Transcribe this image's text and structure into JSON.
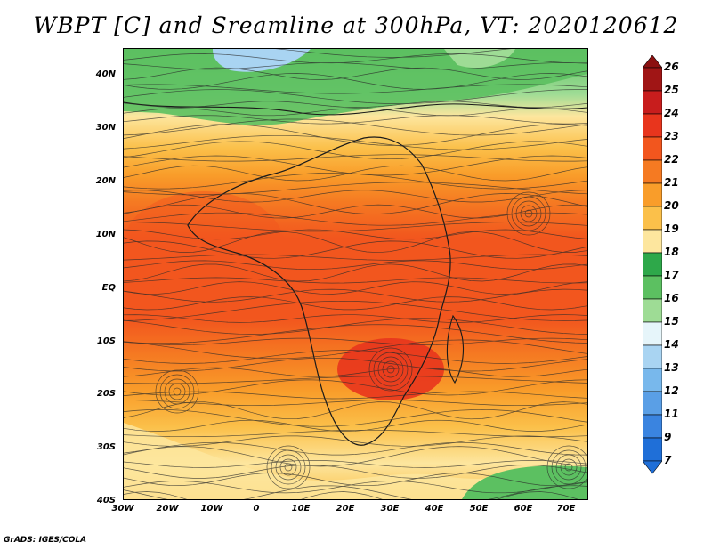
{
  "title": "WBPT [C] and Sreamline at 300hPa, VT: 2020120612",
  "footer": "GrADS: IGES/COLA",
  "axes": {
    "y_labels": [
      "40N",
      "30N",
      "20N",
      "10N",
      "EQ",
      "10S",
      "20S",
      "30S",
      "40S"
    ],
    "x_labels": [
      "30W",
      "20W",
      "10W",
      "0",
      "10E",
      "20E",
      "30E",
      "40E",
      "50E",
      "60E",
      "70E"
    ]
  },
  "colorbar": {
    "labels": [
      "26",
      "25",
      "24",
      "23",
      "22",
      "21",
      "20",
      "19",
      "18",
      "17",
      "16",
      "15",
      "14",
      "13",
      "12",
      "11",
      "9",
      "7"
    ],
    "colors": [
      "#a01515",
      "#c81d1d",
      "#e8351d",
      "#f2561e",
      "#f57a22",
      "#f99d2a",
      "#fbc04a",
      "#fde69e",
      "#2ea84a",
      "#5cc061",
      "#9edc95",
      "#e6f5fa",
      "#a9d4f2",
      "#78b8ec",
      "#5a9fe6",
      "#3a84e0",
      "#1f6fd8"
    ],
    "top_cap_color": "#8b1010",
    "bottom_cap_color": "#1f6fd8"
  }
}
